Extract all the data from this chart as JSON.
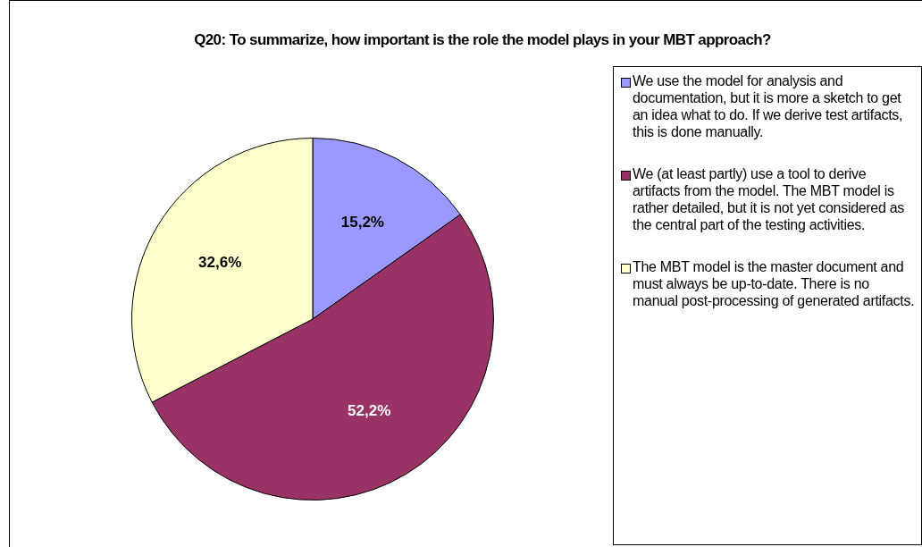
{
  "chart_data": {
    "type": "pie",
    "title": "Q20: To summarize, how important is the role the model plays in your MBT approach?",
    "categories": [
      "We use the model for analysis and documentation, but it is more a sketch to get an idea what to do. If we derive test artifacts, this is done manually.",
      "We (at least partly) use a tool to derive artifacts from the model. The MBT model is rather detailed, but it is not yet considered as the central part of the testing activities.",
      "The MBT model is the master document and must always be up-to-date. There is no manual post-processing of generated artifacts."
    ],
    "values": [
      15.2,
      52.2,
      32.6
    ],
    "value_labels": [
      "15,2%",
      "52,2%",
      "32,6%"
    ],
    "colors": [
      "#9999ff",
      "#993366",
      "#ffffcc"
    ],
    "legend": "right"
  }
}
